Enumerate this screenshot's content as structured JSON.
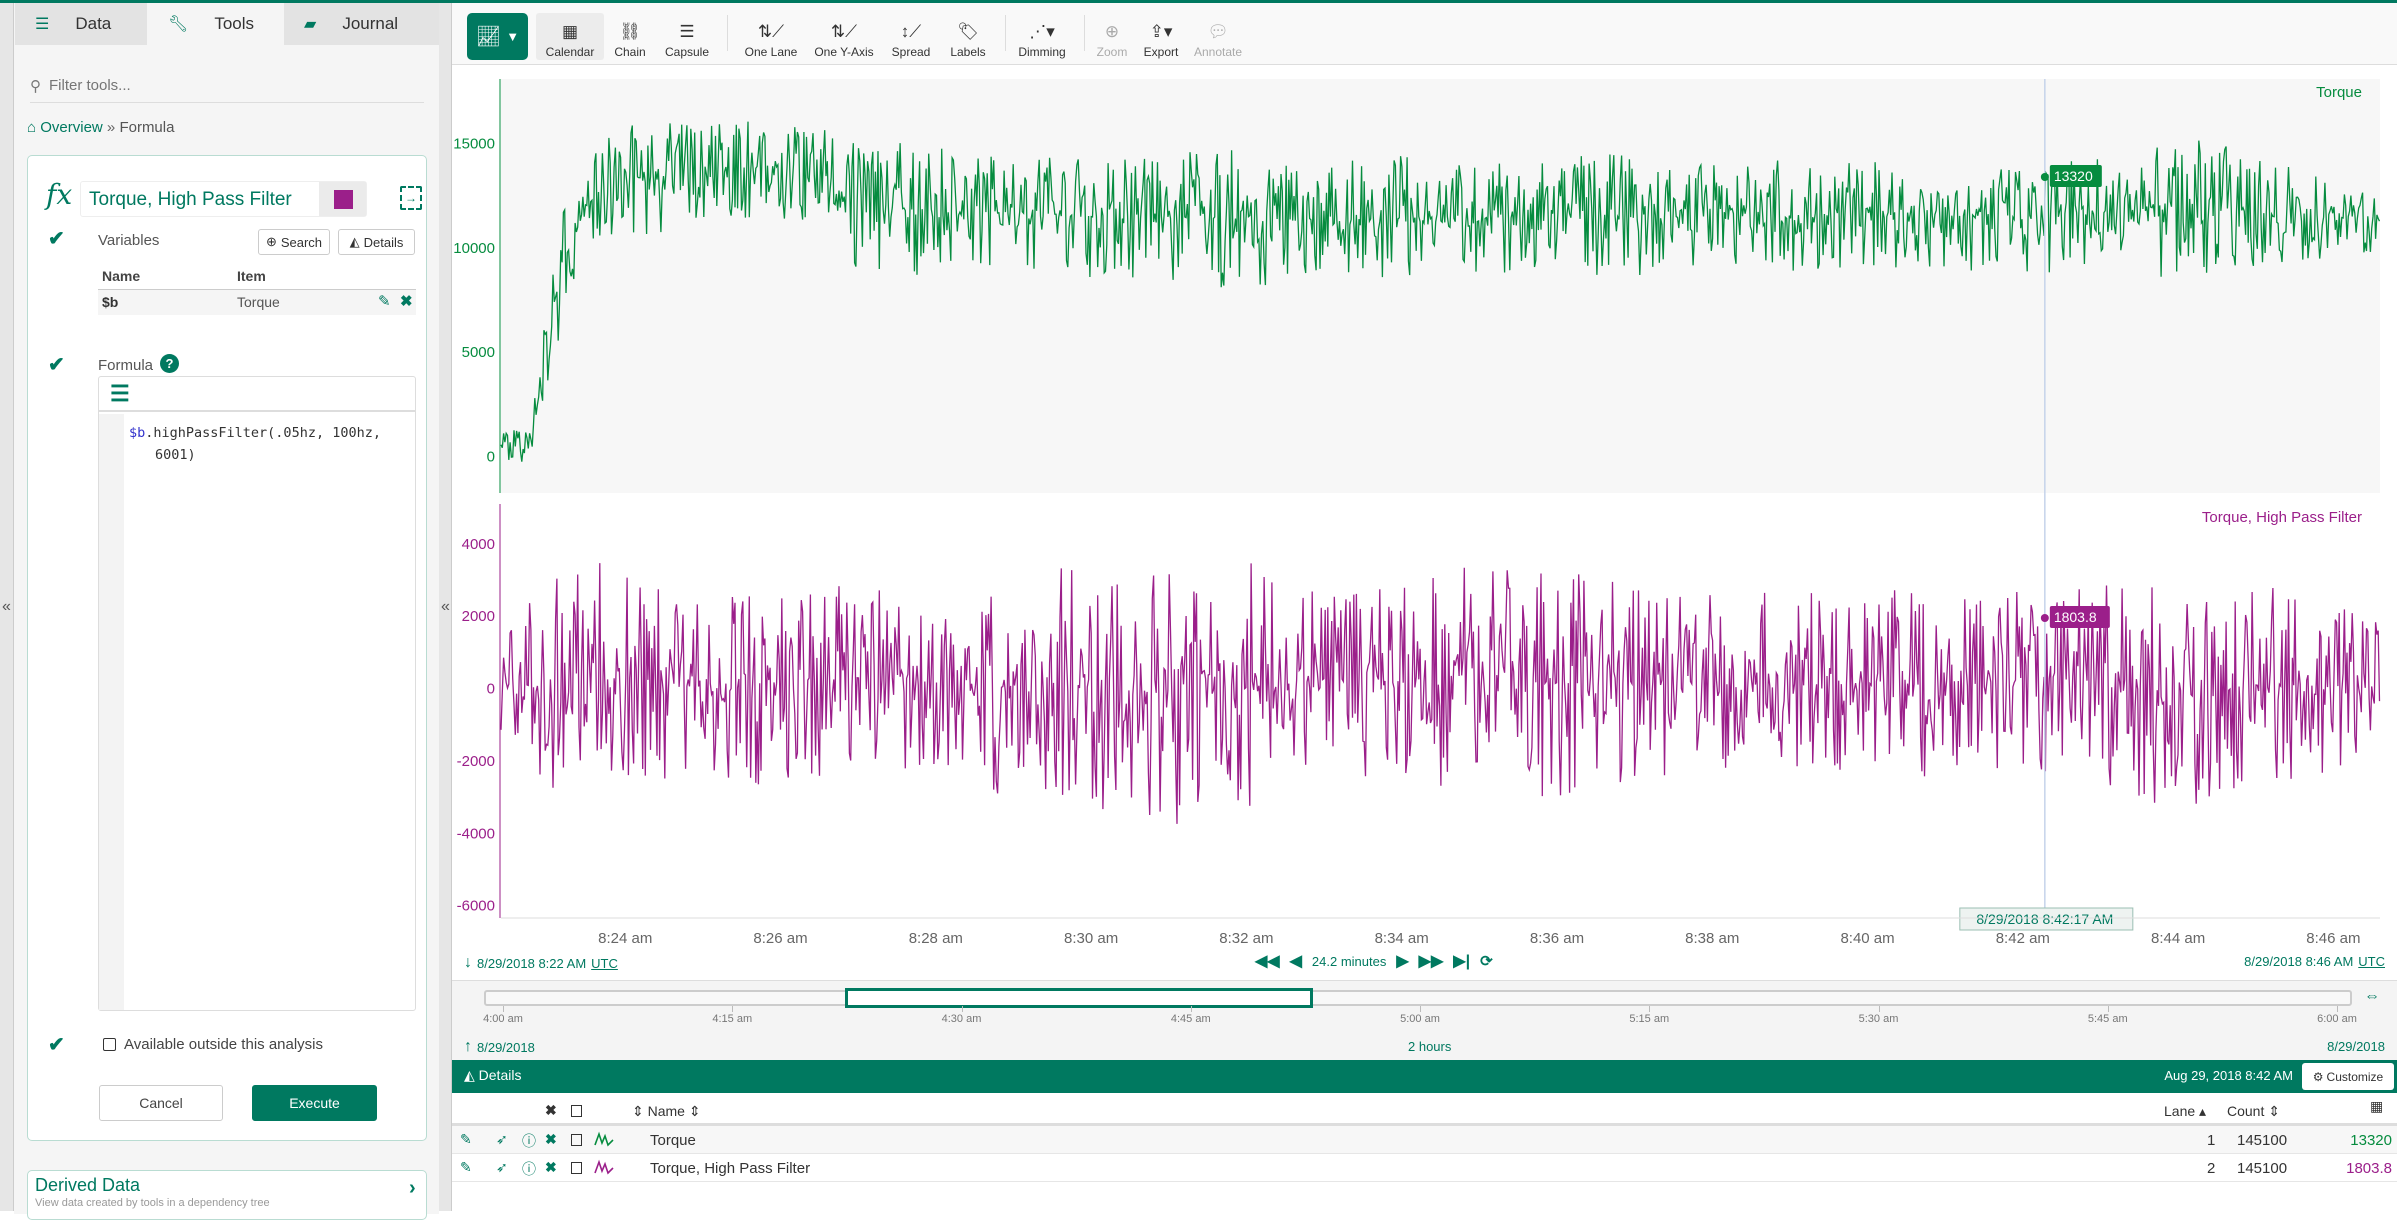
{
  "left_panel": {
    "tabs": [
      {
        "label": "Data",
        "icon": "database-icon"
      },
      {
        "label": "Tools",
        "icon": "wrench-icon",
        "active": true
      },
      {
        "label": "Journal",
        "icon": "book-icon"
      }
    ],
    "filter_placeholder": "Filter tools...",
    "breadcrumb": {
      "home": "Overview",
      "separator": "»",
      "current": "Formula"
    },
    "formula_tool": {
      "fx_symbol": "fx",
      "name_value": "Torque, High Pass Filter",
      "color": "#9b1f8a",
      "variables_label": "Variables",
      "search_label": "Search",
      "details_label": "Details",
      "columns": [
        "Name",
        "Item"
      ],
      "variables": [
        {
          "name": "$b",
          "item": "Torque"
        }
      ],
      "formula_label": "Formula",
      "code_var": "$b",
      "code_line1": ".highPassFilter(.05hz, 100hz,",
      "code_line2": "6001)",
      "available_label": "Available outside this analysis",
      "available_checked": false,
      "cancel_label": "Cancel",
      "execute_label": "Execute"
    },
    "derived": {
      "title": "Derived Data",
      "subtitle": "View data created by tools in a dependency tree"
    }
  },
  "collapse_glyph": "«",
  "toolbar": {
    "items": [
      {
        "label": "Calendar",
        "icon": "calendar-icon",
        "active": true
      },
      {
        "label": "Chain",
        "icon": "chain-icon"
      },
      {
        "label": "Capsule",
        "icon": "capsule-icon"
      },
      {
        "label": "One Lane",
        "icon": "one-lane-icon"
      },
      {
        "label": "One Y-Axis",
        "icon": "one-y-axis-icon"
      },
      {
        "label": "Spread",
        "icon": "spread-icon"
      },
      {
        "label": "Labels",
        "icon": "tag-icon"
      },
      {
        "label": "Dimming",
        "icon": "dimming-icon"
      },
      {
        "label": "Zoom",
        "icon": "zoom-icon",
        "disabled": true
      },
      {
        "label": "Export",
        "icon": "export-icon"
      },
      {
        "label": "Annotate",
        "icon": "comment-icon",
        "disabled": true
      }
    ]
  },
  "chart_data": {
    "type": "line",
    "x_range": [
      "8:22:24 am",
      "8:46:36 am"
    ],
    "x_ticks": [
      "8:24 am",
      "8:26 am",
      "8:28 am",
      "8:30 am",
      "8:32 am",
      "8:34 am",
      "8:36 am",
      "8:38 am",
      "8:40 am",
      "8:42 am",
      "8:44 am",
      "8:46 am"
    ],
    "grid": false,
    "cursor": {
      "time": "8/29/2018 8:42:17 AM"
    },
    "lanes": [
      {
        "name": "Torque",
        "color": "#068c3f",
        "ylim": [
          -1760,
          18100
        ],
        "y_ticks": [
          0,
          5000,
          10000,
          15000
        ],
        "cursor_value": "13320",
        "x": [
          "8:22:24",
          "8:22:45",
          "8:23:10",
          "8:23:30",
          "8:24",
          "8:25",
          "8:26",
          "8:27",
          "8:28",
          "8:29",
          "8:30",
          "8:31",
          "8:32",
          "8:33",
          "8:34",
          "8:35",
          "8:36",
          "8:37",
          "8:38",
          "8:39",
          "8:40",
          "8:41",
          "8:42",
          "8:43",
          "8:44",
          "8:45",
          "8:46",
          "8:46:36"
        ],
        "min": [
          -400,
          -500,
          6000,
          10000,
          10500,
          11000,
          11500,
          9000,
          8500,
          9000,
          8500,
          8200,
          8000,
          8500,
          8500,
          8800,
          8500,
          8500,
          9000,
          8800,
          9000,
          9000,
          8700,
          9000,
          8500,
          9000,
          9500,
          9800
        ],
        "max": [
          1500,
          1200,
          12000,
          14000,
          16300,
          16000,
          16500,
          15500,
          14800,
          14500,
          14500,
          14800,
          14800,
          14000,
          14500,
          14000,
          14500,
          14500,
          14000,
          14300,
          14500,
          14200,
          14000,
          14300,
          15800,
          14500,
          13500,
          13200
        ]
      },
      {
        "name": "Torque, High Pass Filter",
        "color": "#9b1f8a",
        "ylim": [
          -6340,
          5100
        ],
        "y_ticks": [
          -6000,
          -4000,
          -2000,
          0,
          2000,
          4000
        ],
        "cursor_value": "1803.8",
        "x": [
          "8:22:24",
          "8:23",
          "8:24",
          "8:25",
          "8:26",
          "8:27",
          "8:28",
          "8:29",
          "8:30",
          "8:31",
          "8:32",
          "8:33",
          "8:34",
          "8:35",
          "8:36",
          "8:37",
          "8:38",
          "8:39",
          "8:40",
          "8:41",
          "8:42",
          "8:43",
          "8:44",
          "8:45",
          "8:46",
          "8:46:36"
        ],
        "min": [
          -1500,
          -3000,
          -2800,
          -2500,
          -2800,
          -2200,
          -2300,
          -3200,
          -3300,
          -3800,
          -3500,
          -2500,
          -2500,
          -3000,
          -3000,
          -2600,
          -2500,
          -2600,
          -2400,
          -2500,
          -2400,
          -2600,
          -3500,
          -3000,
          -2500,
          -2300
        ],
        "max": [
          1200,
          3500,
          3500,
          2500,
          3200,
          2800,
          2500,
          3200,
          3400,
          3500,
          3500,
          3000,
          2800,
          3800,
          3300,
          3000,
          2800,
          2600,
          2800,
          2700,
          2700,
          3000,
          3300,
          3200,
          2500,
          2300
        ]
      }
    ]
  },
  "nav": {
    "start": "8/29/2018 8:22 AM",
    "end": "8/29/2018 8:46 AM",
    "tz": "UTC",
    "duration": "24.2 minutes"
  },
  "overview": {
    "ticks": [
      "4:00 am",
      "4:15 am",
      "4:30 am",
      "4:45 am",
      "5:00 am",
      "5:15 am",
      "5:30 am",
      "5:45 am",
      "6:00 am"
    ],
    "start_date": "8/29/2018",
    "end_date": "8/29/2018",
    "duration": "2 hours",
    "selection_fraction": [
      0.193,
      0.444
    ]
  },
  "details": {
    "title": "Details",
    "timestamp": "Aug 29, 2018 8:42 AM",
    "customize_label": "Customize",
    "columns": {
      "name": "Name",
      "lane": "Lane",
      "count": "Count"
    },
    "rows": [
      {
        "name": "Torque",
        "lane": "1",
        "count": "145100",
        "value": "13320",
        "color": "#068c3f"
      },
      {
        "name": "Torque, High Pass Filter",
        "lane": "2",
        "count": "145100",
        "value": "1803.8",
        "color": "#9b1f8a"
      }
    ]
  }
}
